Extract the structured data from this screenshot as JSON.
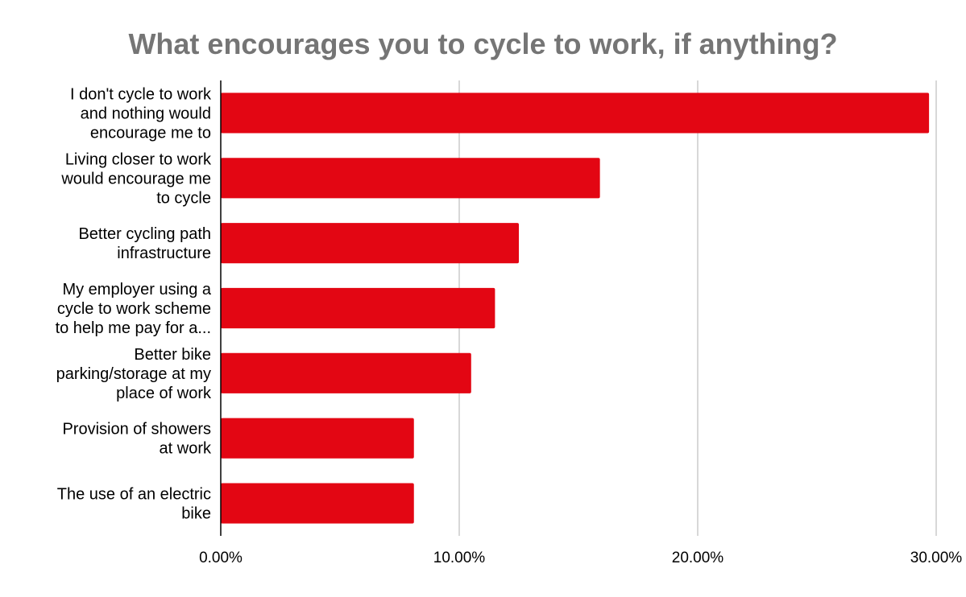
{
  "chart_data": {
    "type": "bar",
    "orientation": "horizontal",
    "title": "What encourages you to cycle to work, if anything?",
    "xlabel": "",
    "ylabel": "",
    "categories": [
      [
        "I don't cycle to work",
        "and nothing would",
        "encourage me to"
      ],
      [
        "Living closer to work",
        "would encourage me",
        "to cycle"
      ],
      [
        "Better cycling path",
        "infrastructure"
      ],
      [
        "My employer using a",
        "cycle to work scheme",
        "to help me pay for a..."
      ],
      [
        "Better bike",
        "parking/storage at my",
        "place of work"
      ],
      [
        "Provision of showers",
        "at work"
      ],
      [
        "The use of an electric",
        "bike"
      ]
    ],
    "values": [
      29.7,
      15.9,
      12.5,
      11.5,
      10.5,
      8.1,
      8.1
    ],
    "xlim": [
      0,
      30
    ],
    "xticks": [
      0,
      10,
      20,
      30
    ],
    "xtick_labels": [
      "0.00%",
      "10.00%",
      "20.00%",
      "30.00%"
    ],
    "grid": "vertical",
    "legend": "none",
    "bar_color": "#e30613",
    "grid_color": "#cccccc",
    "axis_color": "#000000"
  }
}
